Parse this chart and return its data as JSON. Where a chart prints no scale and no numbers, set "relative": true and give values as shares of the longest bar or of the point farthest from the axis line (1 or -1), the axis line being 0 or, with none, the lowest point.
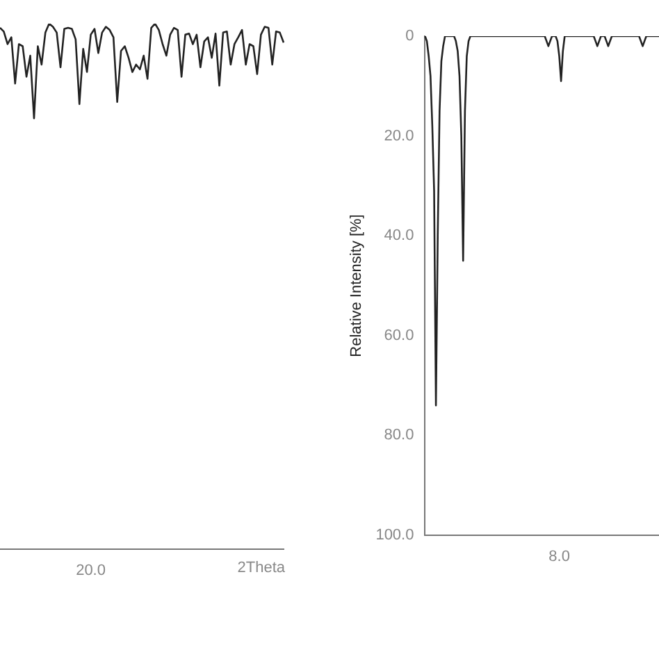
{
  "chart_data": [
    {
      "type": "line",
      "relative": true,
      "xlabel": "2Theta",
      "color": "#222222",
      "marker": "none",
      "annotations": [
        "20.0"
      ],
      "categories": [
        null,
        null,
        null,
        null,
        null,
        null,
        null,
        null,
        null,
        null,
        null,
        null,
        null,
        null,
        null,
        null,
        null,
        null,
        null,
        null,
        null,
        null,
        null,
        null,
        null,
        null,
        null,
        null,
        null,
        null,
        null,
        null,
        null,
        null,
        null,
        null,
        null,
        null,
        null,
        null,
        null,
        null,
        null,
        null,
        null,
        null,
        null,
        null,
        null,
        null,
        null,
        null,
        null,
        null,
        null,
        null,
        null,
        null,
        null,
        null,
        null,
        null,
        null,
        null,
        null,
        null,
        null,
        null,
        null,
        null,
        null,
        null,
        null,
        null,
        null,
        null
      ],
      "values": [
        0.992,
        0.985,
        0.961,
        0.974,
        0.886,
        0.961,
        0.957,
        0.899,
        0.939,
        0.82,
        0.957,
        0.922,
        0.983,
        1,
        0.994,
        0.983,
        0.917,
        0.99,
        0.992,
        0.99,
        0.97,
        0.847,
        0.952,
        0.908,
        0.979,
        0.99,
        0.944,
        0.983,
        0.994,
        0.988,
        0.974,
        0.851,
        0.948,
        0.957,
        0.935,
        0.908,
        0.922,
        0.913,
        0.939,
        0.895,
        0.992,
        1,
        0.988,
        0.961,
        0.939,
        0.979,
        0.992,
        0.988,
        0.899,
        0.979,
        0.981,
        0.961,
        0.979,
        0.917,
        0.966,
        0.974,
        0.935,
        0.981,
        0.882,
        0.983,
        0.985,
        0.922,
        0.961,
        0.974,
        0.988,
        0.922,
        0.961,
        0.957,
        0.904,
        0.979,
        0.994,
        0.992,
        0.922,
        0.985,
        0.983,
        0.964
      ]
    },
    {
      "type": "line",
      "ylabel": "Relative Intensity [%]",
      "color": "#222222",
      "marker": "none",
      "ylim": [
        100,
        0
      ],
      "annotations": [
        "8.0"
      ],
      "yticks": [
        {
          "value": 0,
          "label": "0"
        },
        {
          "value": 20,
          "label": "20.0"
        },
        {
          "value": 40,
          "label": "40.0"
        },
        {
          "value": 60,
          "label": "60.0"
        },
        {
          "value": 80,
          "label": "80.0"
        },
        {
          "value": 100,
          "label": "100.0"
        }
      ],
      "categories": [
        null,
        null,
        null,
        null,
        null,
        null,
        null,
        null,
        null,
        null,
        null,
        null,
        null,
        null,
        null,
        null,
        null,
        null,
        null,
        null,
        null,
        null,
        null,
        null,
        null,
        null,
        null,
        null,
        null,
        null,
        null,
        null,
        null,
        null,
        null,
        null,
        null,
        null,
        null,
        null,
        null,
        null,
        null,
        null,
        null,
        null,
        null,
        null,
        null,
        null,
        null,
        null,
        null,
        null,
        null,
        null,
        null,
        null,
        null,
        null,
        null,
        null,
        null,
        null,
        null,
        null,
        null,
        null,
        null,
        null,
        null,
        null,
        null,
        null,
        null,
        null,
        null,
        null,
        null,
        null,
        null,
        null,
        null,
        null,
        null,
        null,
        null,
        null,
        null,
        null,
        null,
        null,
        null,
        null,
        null,
        null,
        null,
        null,
        null,
        null,
        null,
        null,
        null,
        null,
        null,
        null,
        null,
        null,
        null,
        null,
        null,
        null,
        null,
        null,
        null,
        null,
        null,
        null,
        null,
        null,
        null,
        null,
        null,
        null,
        null,
        null,
        null,
        null,
        null,
        null
      ],
      "values": [
        0,
        1,
        4,
        8,
        18,
        31,
        74,
        40,
        15,
        5,
        2,
        0,
        0,
        0,
        0,
        0,
        0,
        1,
        3,
        8,
        20,
        45,
        15,
        4,
        1,
        0,
        0,
        0,
        0,
        0,
        0,
        0,
        0,
        0,
        0,
        0,
        0,
        0,
        0,
        0,
        0,
        0,
        0,
        0,
        0,
        0,
        0,
        0,
        0,
        0,
        0,
        0,
        0,
        0,
        0,
        0,
        0,
        0,
        0,
        0,
        0,
        0,
        0,
        0,
        0,
        0,
        0,
        1,
        2,
        1,
        0,
        0,
        0,
        1,
        4,
        9,
        3,
        0,
        0,
        0,
        0,
        0,
        0,
        0,
        0,
        0,
        0,
        0,
        0,
        0,
        0,
        0,
        0,
        0,
        1,
        2,
        1,
        0,
        0,
        0,
        1,
        2,
        1,
        0,
        0,
        0,
        0,
        0,
        0,
        0,
        0,
        0,
        0,
        0,
        0,
        0,
        0,
        0,
        0,
        1,
        2,
        1,
        0,
        0,
        0,
        0,
        0,
        0,
        0,
        0
      ]
    }
  ]
}
